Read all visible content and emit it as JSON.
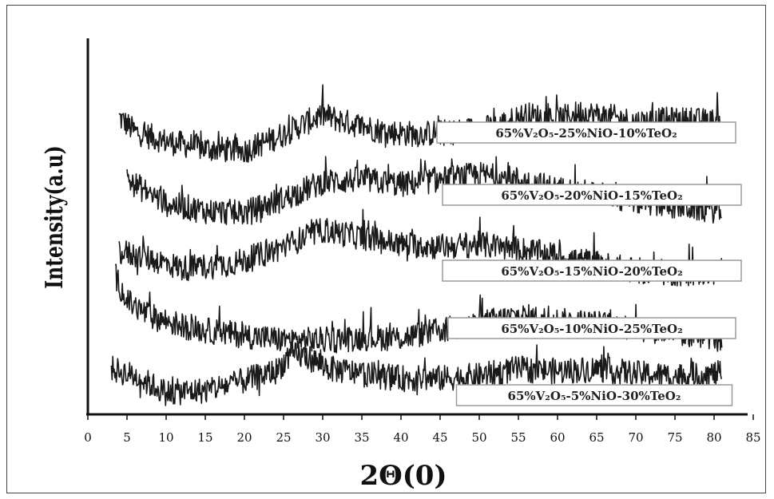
{
  "chart_data": {
    "type": "line",
    "title": "",
    "xlabel": "2Θ(0)",
    "ylabel": "Intensity(a.u)",
    "xlim": [
      0,
      85
    ],
    "x_ticks": [
      "0",
      "5",
      "10",
      "15",
      "20",
      "25",
      "30",
      "35",
      "40",
      "45",
      "50",
      "55",
      "60",
      "65",
      "70",
      "75",
      "80",
      "85"
    ],
    "grid": false,
    "legend": "none",
    "y_ticks_shown": false,
    "series": [
      {
        "name": "65%V₂O₅-25%NiO-10%TeO₂",
        "x": [
          4,
          6,
          10,
          15,
          20,
          25,
          28,
          30,
          33,
          38,
          42,
          47,
          52,
          56,
          60,
          63,
          67,
          70,
          75,
          81
        ],
        "values": [
          6.2,
          5.9,
          5.7,
          5.55,
          5.5,
          5.85,
          6.1,
          6.25,
          6.1,
          5.9,
          5.85,
          5.9,
          6.0,
          6.25,
          6.15,
          6.3,
          6.2,
          6.1,
          6.15,
          6.1
        ]
      },
      {
        "name": "65%V₂O₅-20%NiO-15%TeO₂",
        "x": [
          5,
          7,
          10,
          15,
          20,
          25,
          30,
          35,
          40,
          45,
          50,
          55,
          60,
          65,
          70,
          75,
          81
        ],
        "values": [
          4.9,
          4.7,
          4.4,
          4.25,
          4.2,
          4.5,
          4.85,
          4.9,
          4.8,
          4.9,
          5.0,
          4.9,
          4.7,
          4.6,
          4.45,
          4.35,
          4.25
        ]
      },
      {
        "name": "65%V₂O₅-15%NiO-20%TeO₂",
        "x": [
          4,
          8,
          12,
          16,
          20,
          25,
          30,
          35,
          40,
          45,
          50,
          55,
          60,
          65,
          70,
          75,
          81
        ],
        "values": [
          3.4,
          3.25,
          3.05,
          3.1,
          3.2,
          3.5,
          3.85,
          3.7,
          3.55,
          3.5,
          3.55,
          3.45,
          3.3,
          3.15,
          3.0,
          2.95,
          2.95
        ]
      },
      {
        "name": "65%V₂O₅-10%NiO-25%TeO₂",
        "x": [
          3.5,
          5,
          8,
          12,
          15,
          20,
          25,
          30,
          35,
          40,
          45,
          50,
          55,
          60,
          65,
          70,
          75,
          81
        ],
        "values": [
          2.9,
          2.35,
          2.05,
          1.85,
          1.75,
          1.65,
          1.55,
          1.55,
          1.6,
          1.6,
          1.75,
          1.9,
          2.05,
          1.95,
          1.9,
          1.8,
          1.7,
          1.6
        ]
      },
      {
        "name": "65%V₂O₅-5%NiO-30%TeO₂",
        "x": [
          3,
          6,
          10,
          15,
          20,
          24,
          26,
          28,
          31,
          35,
          40,
          45,
          50,
          55,
          60,
          65,
          70,
          75,
          81
        ],
        "values": [
          0.95,
          0.8,
          0.45,
          0.5,
          0.7,
          0.9,
          1.25,
          1.2,
          0.95,
          0.85,
          0.75,
          0.75,
          0.8,
          0.95,
          0.9,
          0.95,
          0.85,
          0.8,
          0.85
        ]
      }
    ],
    "colors": {
      "line": "#1a1a1a",
      "axis": "#111111",
      "label_box": "#9a9a9a"
    }
  }
}
